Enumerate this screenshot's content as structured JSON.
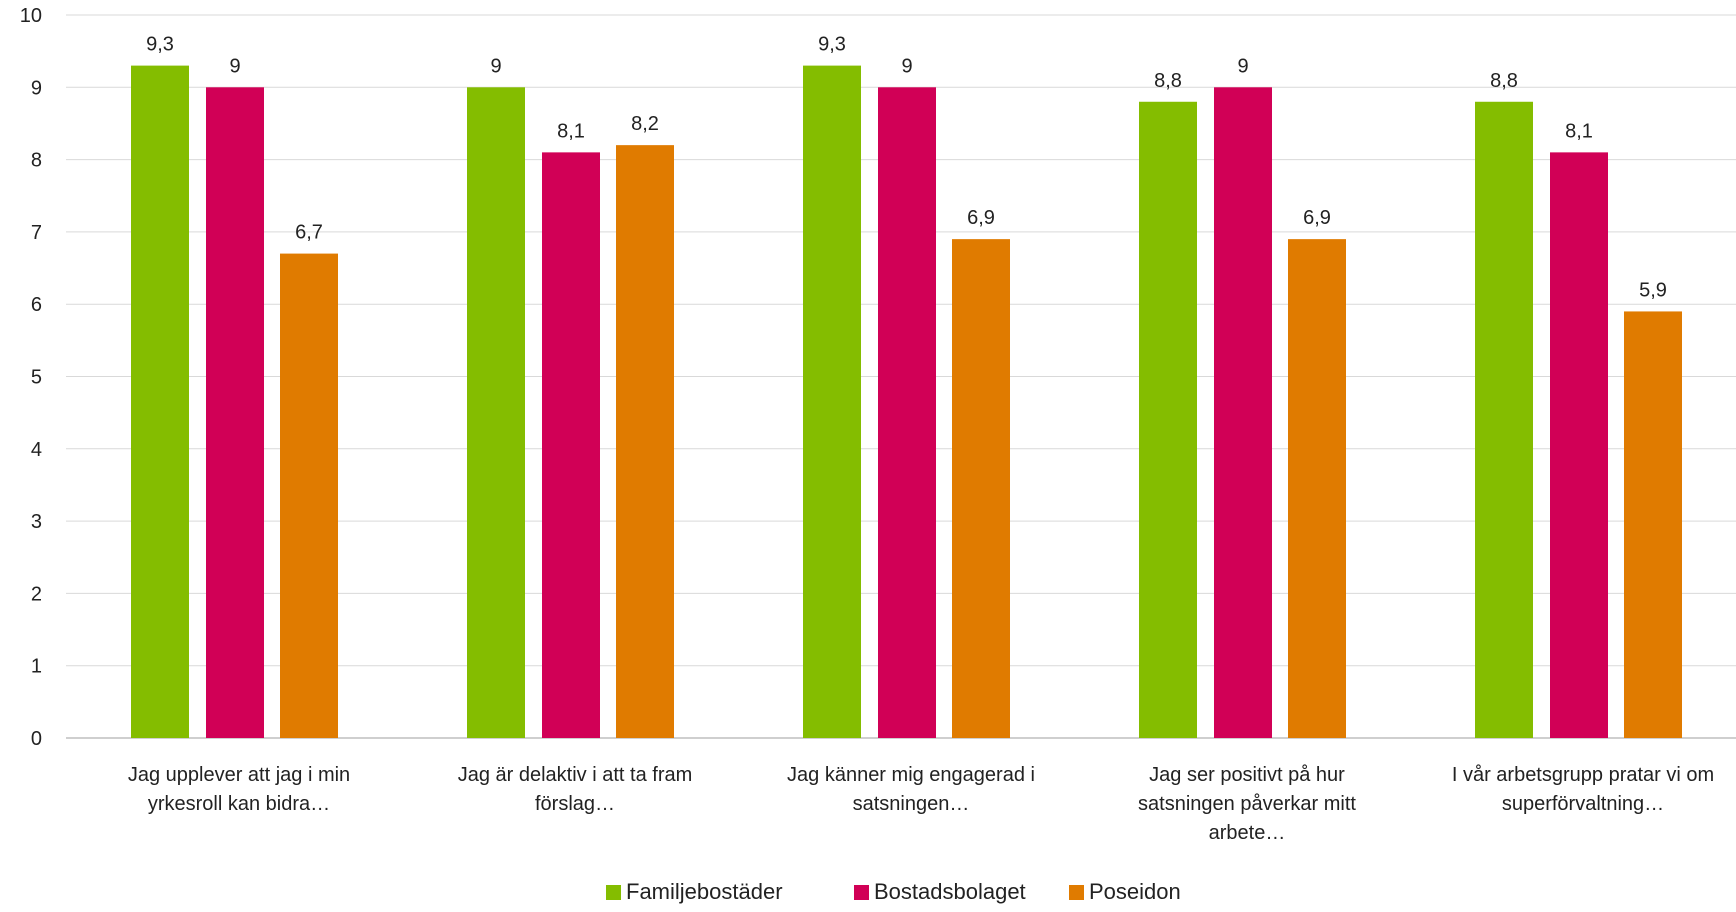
{
  "chart_data": {
    "type": "bar",
    "categories": [
      [
        "Jag upplever att jag i min",
        "yrkesroll kan bidra…"
      ],
      [
        "Jag är delaktiv i att ta fram",
        "förslag…"
      ],
      [
        "Jag känner mig engagerad i",
        "satsningen…"
      ],
      [
        "Jag ser positivt på hur",
        "satsningen påverkar mitt",
        "arbete…"
      ],
      [
        "I vår arbetsgrupp pratar vi om",
        "superförvaltning…"
      ]
    ],
    "series": [
      {
        "name": "Familjebostäder",
        "color": "#84BD00",
        "values": [
          9.3,
          9,
          9.3,
          8.8,
          8.8
        ],
        "labels": [
          "9,3",
          "9",
          "9,3",
          "8,8",
          "8,8"
        ]
      },
      {
        "name": "Bostadsbolaget",
        "color": "#D10056",
        "values": [
          9,
          8.1,
          9,
          9,
          8.1
        ],
        "labels": [
          "9",
          "8,1",
          "9",
          "9",
          "8,1"
        ]
      },
      {
        "name": "Poseidon",
        "color": "#E07B00",
        "values": [
          6.7,
          8.2,
          6.9,
          6.9,
          5.9
        ],
        "labels": [
          "6,7",
          "8,2",
          "6,9",
          "6,9",
          "5,9"
        ]
      }
    ],
    "ylim": [
      0,
      10
    ],
    "yticks": [
      0,
      1,
      2,
      3,
      4,
      5,
      6,
      7,
      8,
      9,
      10
    ],
    "ytick_labels": [
      "0",
      "1",
      "2",
      "3",
      "4",
      "5",
      "6",
      "7",
      "8",
      "9",
      "10"
    ],
    "grid": true,
    "legend_position": "bottom"
  }
}
